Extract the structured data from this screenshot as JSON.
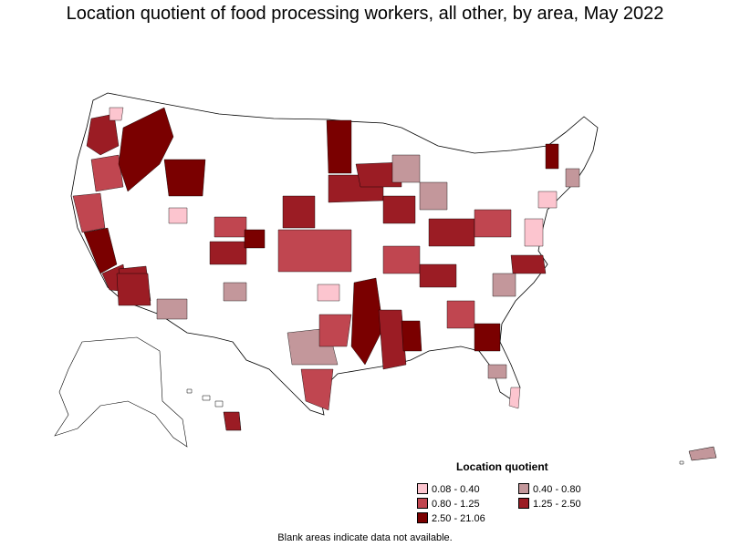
{
  "title": "Location quotient of food processing workers, all other, by area, May 2022",
  "legend": {
    "title": "Location quotient",
    "items": [
      {
        "label": "0.08 - 0.40",
        "color": "#fcc5cf"
      },
      {
        "label": "0.40 - 0.80",
        "color": "#c3979b"
      },
      {
        "label": "0.80 - 1.25",
        "color": "#c04650"
      },
      {
        "label": "1.25 - 2.50",
        "color": "#9b1c24"
      },
      {
        "label": "2.50 - 21.06",
        "color": "#7a0000"
      }
    ]
  },
  "note": "Blank areas indicate data not available.",
  "map_regions": {
    "conus": "contiguous-us",
    "inset_1": "alaska",
    "inset_2": "hawaii",
    "inset_3": "puerto-rico"
  }
}
